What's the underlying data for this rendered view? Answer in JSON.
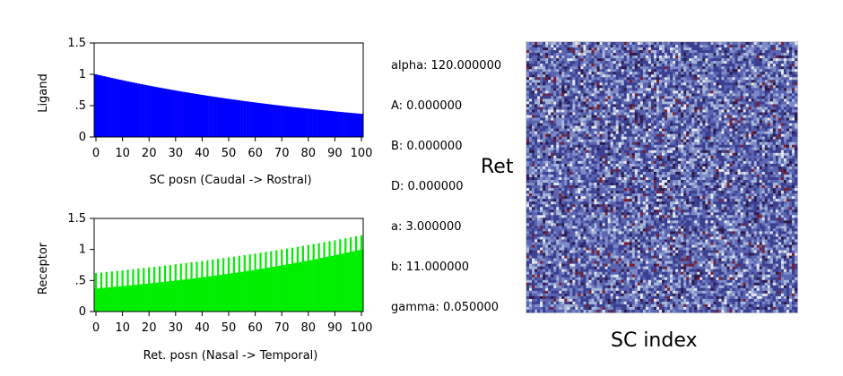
{
  "params": {
    "lines": [
      "alpha: 120.000000",
      "A: 0.000000",
      "B: 0.000000",
      "D: 0.000000",
      "a: 3.000000",
      "b: 11.000000",
      "gamma: 0.050000"
    ]
  },
  "matrix": {
    "ylabel": "Ret",
    "xlabel": "SC index",
    "colors": [
      "#3b3f8f",
      "#5a64b0",
      "#7d8cc8",
      "#a8b8d8",
      "#e2e6ee",
      "#2e1a4a",
      "#7a1f2e"
    ]
  },
  "chart_data": [
    {
      "type": "bar",
      "xlabel": "SC posn (Caudal -> Rostral)",
      "ylabel": "Ligand",
      "xlim": [
        0,
        100
      ],
      "ylim": [
        0,
        1.5
      ],
      "xticks": [
        "0",
        "10",
        "20",
        "30",
        "40",
        "50",
        "60",
        "70",
        "80",
        "90",
        "100"
      ],
      "yticks": [
        ".0",
        ".5",
        "1",
        "1.5"
      ],
      "ytick_labels": [
        "0",
        ".5",
        "1",
        "1.5"
      ],
      "color": "#0000ff",
      "series": [
        {
          "function": "exp_decay",
          "start": 1.0,
          "end": 0.37
        }
      ]
    },
    {
      "type": "bar",
      "xlabel": "Ret. posn (Nasal -> Temporal)",
      "ylabel": "Receptor",
      "xlim": [
        0,
        100
      ],
      "ylim": [
        0,
        1.5
      ],
      "xticks": [
        "0",
        "10",
        "20",
        "30",
        "40",
        "50",
        "60",
        "70",
        "80",
        "90",
        "100"
      ],
      "ytick_labels": [
        "0",
        ".5",
        "1",
        "1.5"
      ],
      "color": "#00ee00",
      "series": [
        {
          "function": "exp_growth",
          "start": 0.37,
          "end": 1.0
        },
        {
          "function": "exp_growth_alt",
          "start": 0.62,
          "end": 1.23
        }
      ]
    }
  ]
}
